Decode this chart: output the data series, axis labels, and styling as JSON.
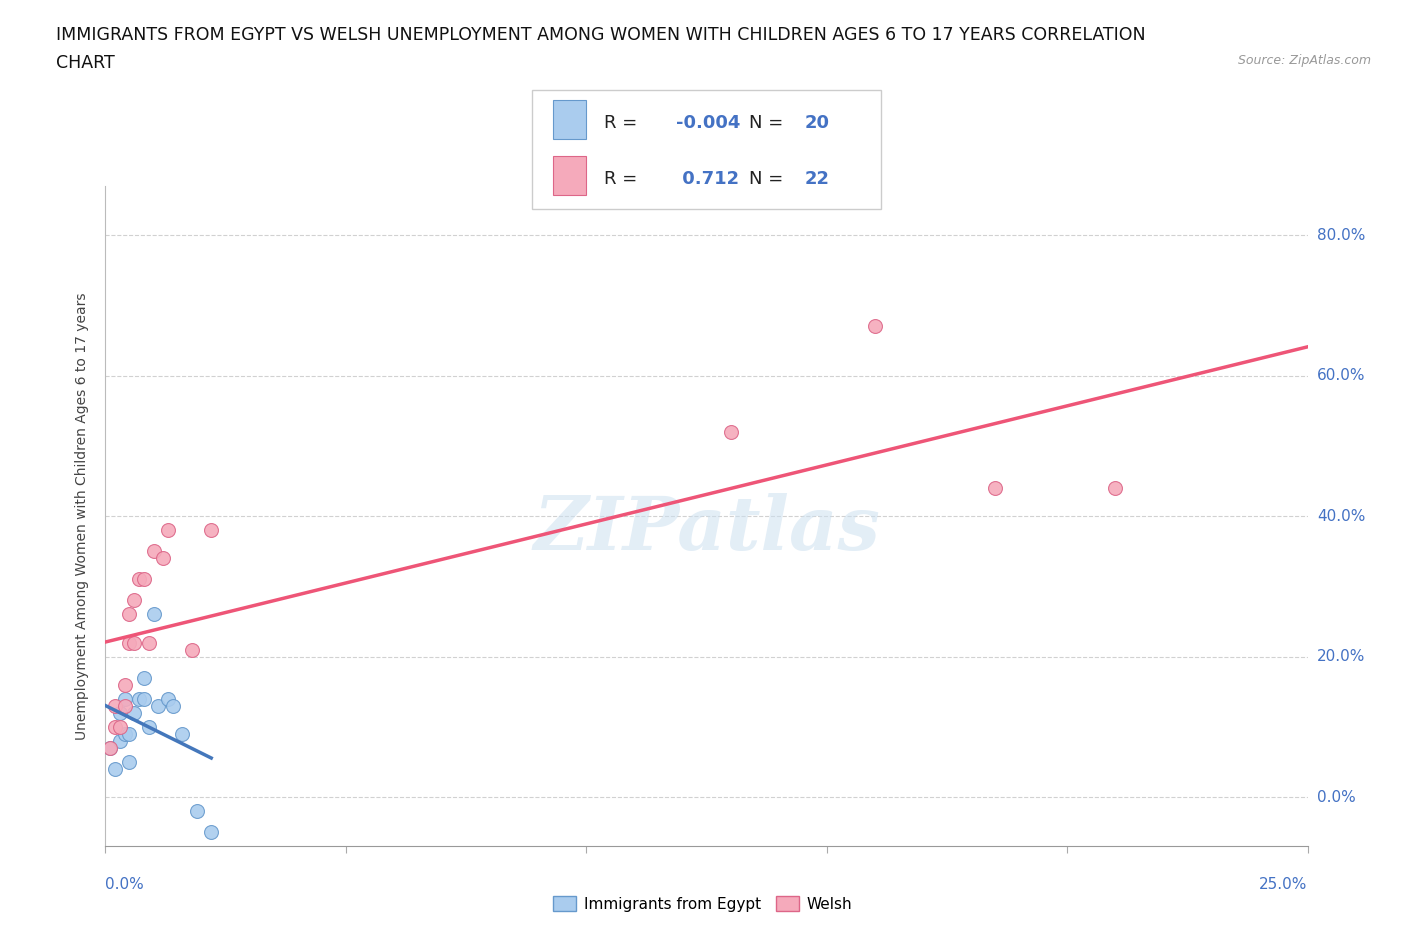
{
  "title_line1": "IMMIGRANTS FROM EGYPT VS WELSH UNEMPLOYMENT AMONG WOMEN WITH CHILDREN AGES 6 TO 17 YEARS CORRELATION",
  "title_line2": "CHART",
  "source": "Source: ZipAtlas.com",
  "ylabel": "Unemployment Among Women with Children Ages 6 to 17 years",
  "xlim": [
    0.0,
    0.25
  ],
  "ylim": [
    -0.07,
    0.87
  ],
  "yticks": [
    0.0,
    0.2,
    0.4,
    0.6,
    0.8
  ],
  "ytick_labels": [
    "0.0%",
    "20.0%",
    "40.0%",
    "60.0%",
    "80.0%"
  ],
  "color_egypt": "#aaccee",
  "color_welsh": "#f5aabb",
  "color_edge_egypt": "#6699cc",
  "color_edge_welsh": "#dd6688",
  "color_line_egypt": "#4477bb",
  "color_line_welsh": "#ee5577",
  "watermark": "ZIPatlas",
  "egypt_x": [
    0.001,
    0.002,
    0.003,
    0.003,
    0.004,
    0.004,
    0.005,
    0.005,
    0.006,
    0.007,
    0.008,
    0.008,
    0.009,
    0.01,
    0.011,
    0.013,
    0.014,
    0.016,
    0.019,
    0.022
  ],
  "egypt_y": [
    0.07,
    0.04,
    0.08,
    0.12,
    0.09,
    0.14,
    0.05,
    0.09,
    0.12,
    0.14,
    0.14,
    0.17,
    0.1,
    0.26,
    0.13,
    0.14,
    0.13,
    0.09,
    -0.02,
    -0.05
  ],
  "welsh_x": [
    0.001,
    0.002,
    0.002,
    0.003,
    0.004,
    0.004,
    0.005,
    0.005,
    0.006,
    0.006,
    0.007,
    0.008,
    0.009,
    0.01,
    0.012,
    0.013,
    0.018,
    0.022,
    0.13,
    0.16,
    0.185,
    0.21
  ],
  "welsh_y": [
    0.07,
    0.1,
    0.13,
    0.1,
    0.13,
    0.16,
    0.22,
    0.26,
    0.22,
    0.28,
    0.31,
    0.31,
    0.22,
    0.35,
    0.34,
    0.38,
    0.21,
    0.38,
    0.52,
    0.67,
    0.44,
    0.44
  ],
  "R_egypt": -0.004,
  "N_egypt": 20,
  "R_welsh": 0.712,
  "N_welsh": 22,
  "grid_color": "#cccccc",
  "bg_color": "#ffffff",
  "title_fontsize": 12.5,
  "ylabel_fontsize": 10,
  "tick_fontsize": 11,
  "legend_fontsize": 13
}
